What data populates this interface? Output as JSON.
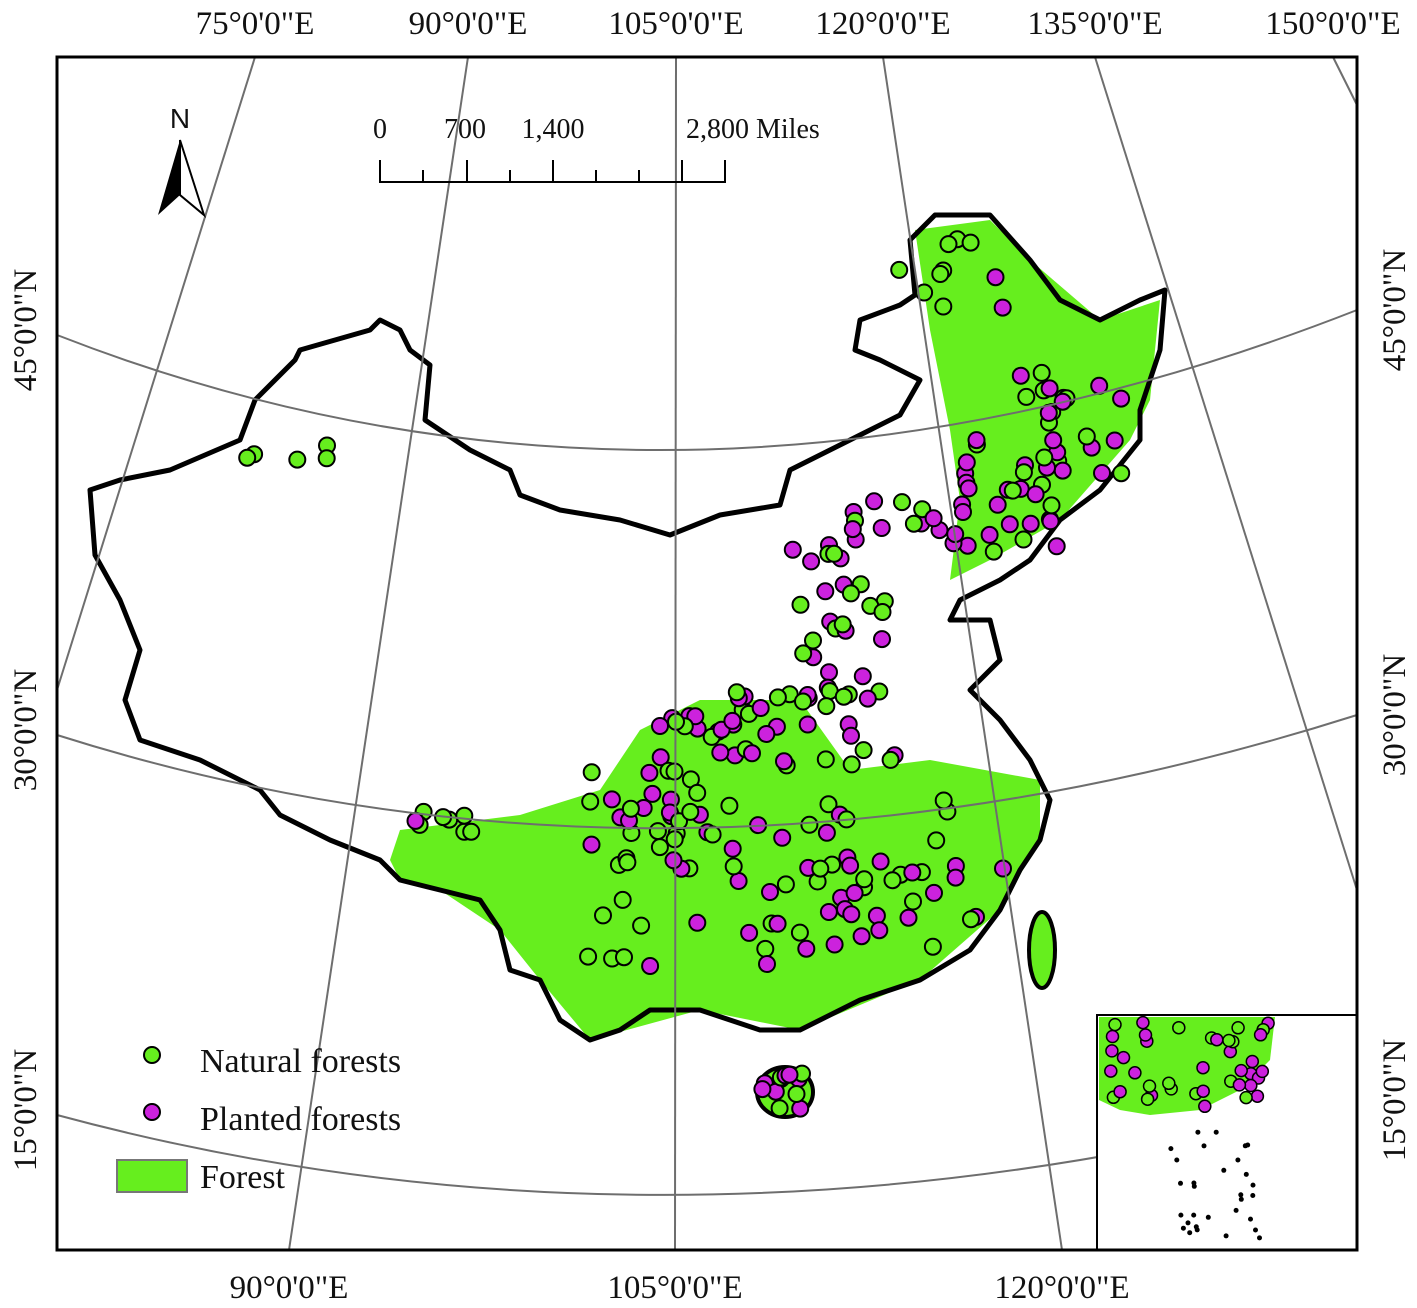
{
  "map": {
    "top_labels": [
      "75°0'0\"E",
      "90°0'0\"E",
      "105°0'0\"E",
      "120°0'0\"E",
      "135°0'0\"E",
      "150°0'0\"E"
    ],
    "bottom_labels": [
      "90°0'0\"E",
      "105°0'0\"E",
      "120°0'0\"E"
    ],
    "left_labels": [
      "45°0'0\"N",
      "30°0'0\"N",
      "15°0'0\"N"
    ],
    "right_labels": [
      "45°0'0\"N",
      "30°0'0\"N",
      "15°0'0\"N"
    ],
    "north": "N",
    "scale_bar": [
      "0",
      "700",
      "1,400",
      "2,800 Miles"
    ],
    "legend": [
      "Natural forests",
      "Planted forests",
      "Forest"
    ]
  }
}
